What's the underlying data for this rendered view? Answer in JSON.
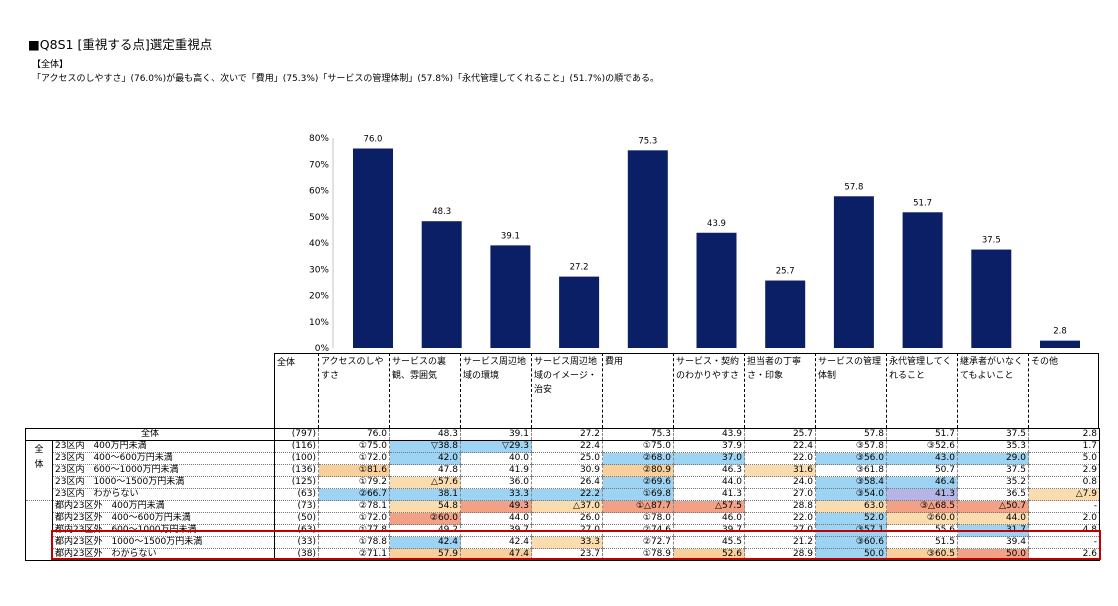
{
  "title": "■Q8S1 [重視する点]選定重視点",
  "segment_label": "【全体】",
  "summary": "「アクセスのしやすさ」(76.0%)が最も高く、次いで「費用」(75.3%)「サービスの管理体制」(57.8%)「永代管理してくれること」(51.7%)の順である。",
  "colors": {
    "bar": "#0b1f66",
    "blue": "#9dd3f3",
    "orange": "#f9cf9b",
    "lightorange": "#fbdcae",
    "salmon": "#f3a186",
    "lavender": "#b7b5e6",
    "highlight": "#c00000"
  },
  "chart_data": {
    "type": "bar",
    "categories": [
      "アクセスのしやすさ",
      "サービスの裏観、雰囲気",
      "サービス周辺地域の環境",
      "サービス周辺地域のイメージ・治安",
      "費用",
      "サービス・契約のわかりやすさ",
      "担当者の丁寧さ・印象",
      "サービスの管理体制",
      "永代管理してくれること",
      "継承者がいなくてもよいこと",
      "その他"
    ],
    "values": [
      76.0,
      48.3,
      39.1,
      27.2,
      75.3,
      43.9,
      25.7,
      57.8,
      51.7,
      37.5,
      2.8
    ],
    "value_labels": [
      "76.0",
      "48.3",
      "39.1",
      "27.2",
      "75.3",
      "43.9",
      "25.7",
      "57.8",
      "51.7",
      "37.5",
      "2.8"
    ],
    "yticks": [
      "80%",
      "70%",
      "60%",
      "50%",
      "40%",
      "30%",
      "20%",
      "10%",
      "0%"
    ],
    "ylim": [
      0,
      80
    ]
  },
  "table": {
    "total_header": "全体",
    "header_line1": [
      "アクセスのしや",
      "サービスの裏",
      "サービス周辺地",
      "サービス周辺地",
      "費用",
      "サービス・契約",
      "担当者の丁寧",
      "サービスの管理",
      "永代管理してく",
      "継承者がいなく",
      "その他"
    ],
    "header_line2": [
      "すさ",
      "観、雰囲気",
      "域の環境",
      "域のイメージ・",
      "",
      "のわかりやすさ",
      "さ・印象",
      "体制",
      "れること",
      "てもよいこと",
      ""
    ],
    "header_line3": [
      "",
      "",
      "",
      "治安",
      "",
      "",
      "",
      "",
      "",
      "",
      ""
    ],
    "side_label1": "全",
    "side_label2": "体",
    "total_row": {
      "label": "全体",
      "n": "(797)",
      "v": [
        "76.0",
        "48.3",
        "39.1",
        "27.2",
        "75.3",
        "43.9",
        "25.7",
        "57.8",
        "51.7",
        "37.5",
        "2.8"
      ]
    },
    "rows": [
      {
        "label": "23区内　400万円未満",
        "n": "(116)",
        "v": [
          "①75.0",
          "▽38.8",
          "▽29.3",
          "22.4",
          "①75.0",
          "37.9",
          "22.4",
          "③57.8",
          "③52.6",
          "35.3",
          "1.7"
        ]
      },
      {
        "label": "23区内　400～600万円未満",
        "n": "(100)",
        "v": [
          "①72.0",
          "42.0",
          "40.0",
          "25.0",
          "②68.0",
          "37.0",
          "22.0",
          "③56.0",
          "43.0",
          "29.0",
          "5.0"
        ]
      },
      {
        "label": "23区内　600～1000万円未満",
        "n": "(136)",
        "v": [
          "①81.6",
          "47.8",
          "41.9",
          "30.9",
          "②80.9",
          "46.3",
          "31.6",
          "③61.8",
          "50.7",
          "37.5",
          "2.9"
        ]
      },
      {
        "label": "23区内　1000～1500万円未満",
        "n": "(125)",
        "v": [
          "①79.2",
          "△57.6",
          "36.0",
          "26.4",
          "②69.6",
          "44.0",
          "24.0",
          "③58.4",
          "46.4",
          "35.2",
          "0.8"
        ]
      },
      {
        "label": "23区内　わからない",
        "n": "(63)",
        "v": [
          "②66.7",
          "38.1",
          "33.3",
          "22.2",
          "①69.8",
          "41.3",
          "27.0",
          "③54.0",
          "41.3",
          "36.5",
          "△7.9"
        ]
      },
      {
        "label": "都内23区外　400万円未満",
        "n": "(73)",
        "v": [
          "②78.1",
          "54.8",
          "49.3",
          "△37.0",
          "①△87.7",
          "△57.5",
          "28.8",
          "63.0",
          "③△68.5",
          "△50.7",
          "-"
        ]
      },
      {
        "label": "都内23区外　400～600万円未満",
        "n": "(50)",
        "v": [
          "①72.0",
          "②60.0",
          "44.0",
          "26.0",
          "①78.0",
          "46.0",
          "22.0",
          "52.0",
          "②60.0",
          "44.0",
          "2.0"
        ]
      },
      {
        "label": "都内23区外　600～1000万円未満",
        "n": "(63)",
        "v": [
          "①77.8",
          "49.2",
          "39.7",
          "27.0",
          "②74.6",
          "39.7",
          "27.0",
          "③57.1",
          "55.6",
          "31.7",
          "4.8"
        ]
      },
      {
        "label": "都内23区外　1000～1500万円未満",
        "n": "(33)",
        "v": [
          "①78.8",
          "42.4",
          "42.4",
          "33.3",
          "②72.7",
          "45.5",
          "21.2",
          "③60.6",
          "51.5",
          "39.4",
          "-"
        ]
      },
      {
        "label": "都内23区外　わからない",
        "n": "(38)",
        "v": [
          "②71.1",
          "57.9",
          "47.4",
          "23.7",
          "①78.9",
          "52.6",
          "28.9",
          "50.0",
          "③60.5",
          "50.0",
          "2.6"
        ]
      }
    ],
    "highlights": [
      [
        "",
        "blue",
        "blue",
        "",
        "",
        "",
        "",
        "",
        "",
        "",
        ""
      ],
      [
        "",
        "blue",
        "",
        "",
        "blue",
        "blue",
        "",
        "blue",
        "blue",
        "blue",
        ""
      ],
      [
        "orange",
        "",
        "",
        "",
        "orange",
        "",
        "lightorange",
        "",
        "",
        "",
        ""
      ],
      [
        "",
        "lightorange",
        "",
        "",
        "blue",
        "",
        "",
        "blue",
        "blue",
        "",
        ""
      ],
      [
        "blue",
        "blue",
        "blue",
        "blue",
        "blue",
        "",
        "",
        "blue",
        "lavender",
        "",
        "lightorange"
      ],
      [
        "",
        "lightorange",
        "salmon",
        "lightorange",
        "salmon",
        "salmon",
        "",
        "lightorange",
        "salmon",
        "salmon",
        ""
      ],
      [
        "",
        "salmon",
        "",
        "",
        "",
        "",
        "",
        "blue",
        "lightorange",
        "lightorange",
        ""
      ],
      [
        "",
        "",
        "",
        "",
        "",
        "",
        "",
        "blue",
        "",
        "blue",
        ""
      ],
      [
        "",
        "blue",
        "",
        "lightorange",
        "",
        "",
        "",
        "blue",
        "",
        "",
        ""
      ],
      [
        "",
        "orange",
        "orange",
        "",
        "",
        "orange",
        "",
        "blue",
        "orange",
        "salmon",
        ""
      ]
    ]
  }
}
